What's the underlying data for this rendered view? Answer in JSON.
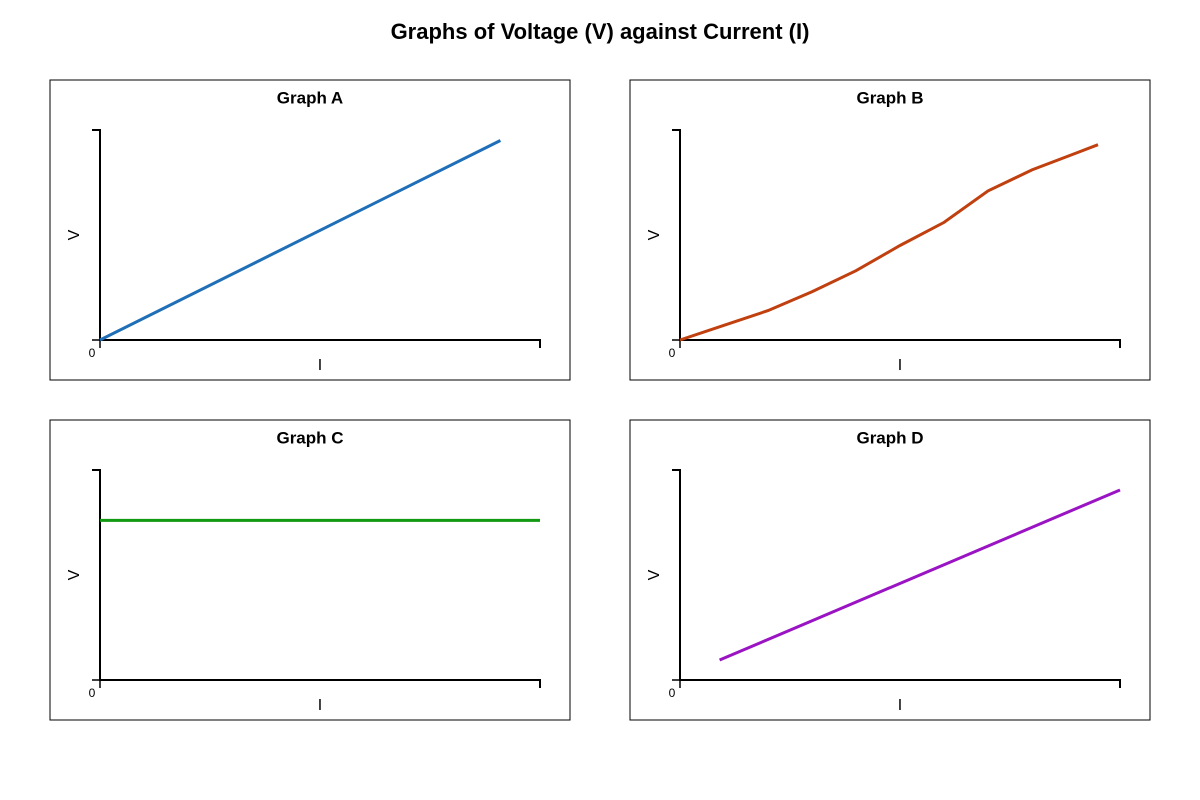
{
  "title": "Graphs of Voltage (V) against Current (I)",
  "chart_data": [
    {
      "type": "line",
      "title": "Graph A",
      "x_label": "I",
      "y_label": "V",
      "xlim": [
        0,
        10
      ],
      "ylim": [
        0,
        10
      ],
      "xticks": [
        0
      ],
      "series": [
        {
          "color": "#1f6fb8",
          "x": [
            0,
            9.1
          ],
          "values": [
            0,
            9.5
          ]
        }
      ]
    },
    {
      "type": "line",
      "title": "Graph B",
      "x_label": "I",
      "y_label": "V",
      "xlim": [
        0,
        10
      ],
      "ylim": [
        0,
        10
      ],
      "xticks": [
        0
      ],
      "series": [
        {
          "color": "#c0400f",
          "x": [
            0,
            1,
            2,
            3,
            4,
            5,
            6,
            7,
            8,
            9,
            9.5
          ],
          "values": [
            0,
            0.7,
            1.4,
            2.3,
            3.3,
            4.5,
            5.6,
            7.1,
            8.1,
            8.9,
            9.3
          ]
        }
      ]
    },
    {
      "type": "line",
      "title": "Graph C",
      "x_label": "I",
      "y_label": "V",
      "xlim": [
        0,
        10
      ],
      "ylim": [
        0,
        10
      ],
      "xticks": [
        0
      ],
      "series": [
        {
          "color": "#119911",
          "x": [
            0,
            10
          ],
          "values": [
            7.6,
            7.6
          ]
        }
      ]
    },
    {
      "type": "line",
      "title": "Graph D",
      "x_label": "I",
      "y_label": "V",
      "xlim": [
        0,
        10
      ],
      "ylim": [
        0,
        10
      ],
      "xticks": [
        0
      ],
      "series": [
        {
          "color": "#9a14c4",
          "x": [
            0.9,
            10
          ],
          "values": [
            0.95,
            9.05
          ]
        }
      ]
    }
  ]
}
